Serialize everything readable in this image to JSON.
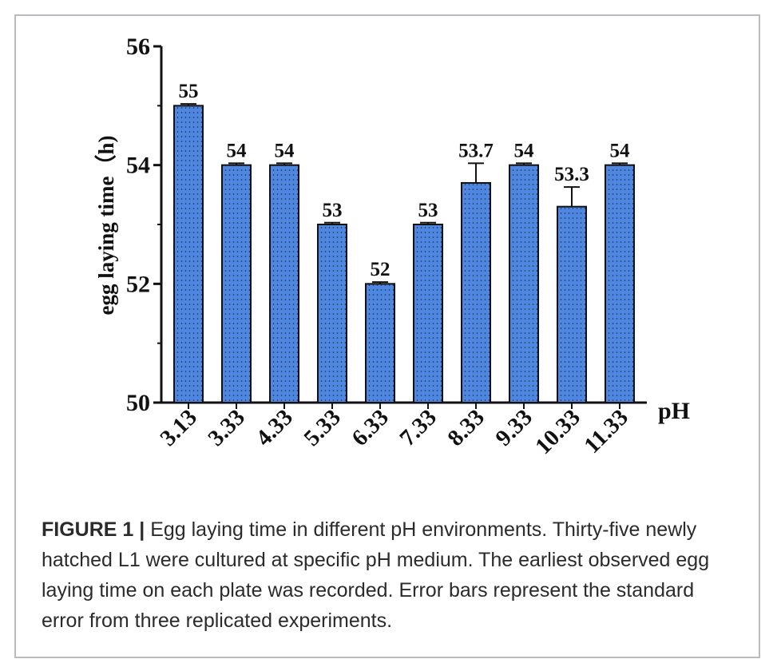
{
  "chart_data": {
    "type": "bar",
    "categories": [
      "3.13",
      "3.33",
      "4.33",
      "5.33",
      "6.33",
      "7.33",
      "8.33",
      "9.33",
      "10.33",
      "11.33"
    ],
    "values": [
      55,
      54,
      54,
      53,
      52,
      53,
      53.7,
      54,
      53.3,
      54
    ],
    "errors": [
      0.03,
      0.03,
      0.03,
      0.03,
      0.03,
      0.03,
      0.33,
      0.03,
      0.33,
      0.03
    ],
    "value_labels": [
      "55",
      "54",
      "54",
      "53",
      "52",
      "53",
      "53.7",
      "54",
      "53.3",
      "54"
    ],
    "ylabel": "egg laying time（h)",
    "xlabel": "pH",
    "ylim": [
      50,
      56
    ],
    "yticks": [
      "50",
      "52",
      "54",
      "56"
    ],
    "grid": false,
    "bar_color": "#4f86e0",
    "bar_dot_color": "#1a2d55"
  },
  "caption": {
    "label": "FIGURE 1 |",
    "text": " Egg laying time in different pH environments. Thirty-five newly hatched L1 were cultured at specific pH medium. The earliest observed egg laying time on each plate was recorded. Error bars represent the standard error from three replicated experiments."
  }
}
